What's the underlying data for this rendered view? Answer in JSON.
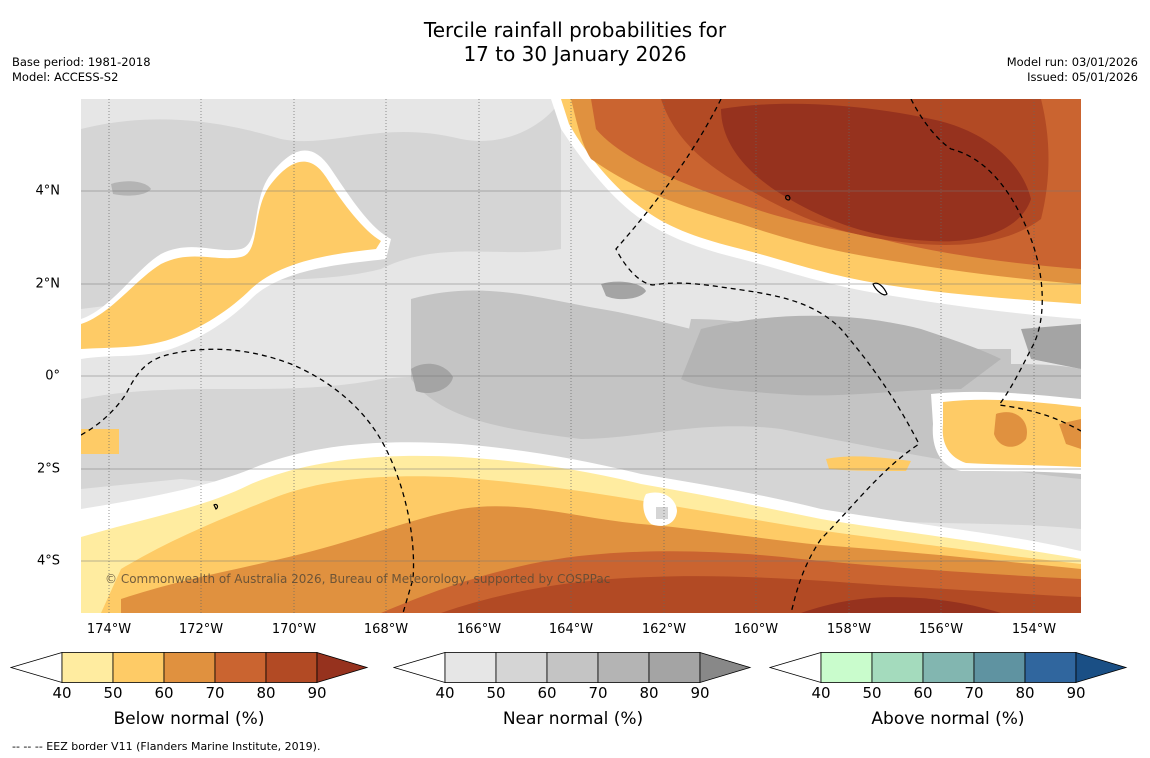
{
  "header": {
    "title_line1": "Tercile rainfall probabilities for",
    "title_line2": "17 to 30 January 2026",
    "base_period": "Base period: 1981-2018",
    "model": "Model: ACCESS-S2",
    "model_run": "Model run: 03/01/2026",
    "issued": "Issued: 05/01/2026"
  },
  "map": {
    "lat_labels": [
      "4°N",
      "2°N",
      "0°",
      "2°S",
      "4°S"
    ],
    "lon_labels": [
      "174°W",
      "172°W",
      "170°W",
      "168°W",
      "166°W",
      "164°W",
      "162°W",
      "160°W",
      "158°W",
      "156°W",
      "154°W"
    ],
    "copyright": "© Commonwealth of Australia 2026, Bureau of Meteorology, supported by COSPPac"
  },
  "legend": {
    "tick_values": [
      "40",
      "50",
      "60",
      "70",
      "80",
      "90"
    ],
    "below": {
      "label": "Below normal (%)",
      "colors": [
        "#ffffff",
        "#ffeca0",
        "#fecb66",
        "#e0913f",
        "#ca6430",
        "#b24a24",
        "#96321e"
      ]
    },
    "near": {
      "label": "Near normal (%)",
      "colors": [
        "#ffffff",
        "#e6e6e6",
        "#d5d5d5",
        "#c4c4c4",
        "#b4b4b4",
        "#a4a4a4",
        "#888888"
      ]
    },
    "above": {
      "label": "Above normal (%)",
      "colors": [
        "#ffffff",
        "#c9fccc",
        "#a4dbbd",
        "#82b6b0",
        "#5f93a1",
        "#30669e",
        "#1a4f85"
      ]
    }
  },
  "footnote": "--  --  -- EEZ border V11 (Flanders Marine Institute, 2019)."
}
